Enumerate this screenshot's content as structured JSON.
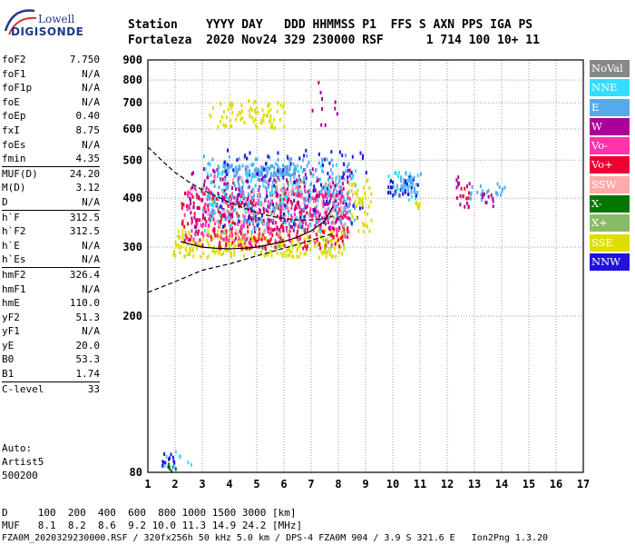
{
  "logo": {
    "line1": "Lowell",
    "line2": "DIGISONDE"
  },
  "header": {
    "line1": "Station    YYYY DAY   DDD HHMMSS P1  FFS S AXN PPS IGA PS",
    "line2": "Fortaleza  2020 Nov24 329 230000 RSF      1 714 100 10+ 11"
  },
  "params": [
    {
      "name": "foF2",
      "value": "7.750"
    },
    {
      "name": "foF1",
      "value": "N/A"
    },
    {
      "name": "foF1p",
      "value": "N/A"
    },
    {
      "name": "foE",
      "value": "N/A"
    },
    {
      "name": "foEp",
      "value": "0.40"
    },
    {
      "name": "fxI",
      "value": "8.75"
    },
    {
      "name": "foEs",
      "value": "N/A"
    },
    {
      "name": "fmin",
      "value": "4.35"
    },
    {
      "name": "MUF(D)",
      "value": "24.20",
      "sep": true
    },
    {
      "name": "M(D)",
      "value": "3.12"
    },
    {
      "name": "D",
      "value": "N/A"
    },
    {
      "name": "h`F",
      "value": "312.5",
      "sep": true
    },
    {
      "name": "h`F2",
      "value": "312.5"
    },
    {
      "name": "h`E",
      "value": "N/A"
    },
    {
      "name": "h`Es",
      "value": "N/A"
    },
    {
      "name": "hmF2",
      "value": "326.4",
      "sep": true
    },
    {
      "name": "hmF1",
      "value": "N/A"
    },
    {
      "name": "hmE",
      "value": "110.0"
    },
    {
      "name": "yF2",
      "value": "51.3"
    },
    {
      "name": "yF1",
      "value": "N/A"
    },
    {
      "name": "yE",
      "value": "20.0"
    },
    {
      "name": "B0",
      "value": "53.3"
    },
    {
      "name": "B1",
      "value": "1.74"
    },
    {
      "name": "C-level",
      "value": "33",
      "sep": true
    }
  ],
  "auto": {
    "line1": "Auto:",
    "line2": "Artist5",
    "line3": "500200"
  },
  "legend": [
    {
      "label": "NoVal",
      "color": "#888888"
    },
    {
      "label": "NNE",
      "color": "#33ddff"
    },
    {
      "label": "E",
      "color": "#55aaee"
    },
    {
      "label": "W",
      "color": "#aa0099"
    },
    {
      "label": "Vo-",
      "color": "#ff33aa"
    },
    {
      "label": "Vo+",
      "color": "#ee0033"
    },
    {
      "label": "SSW",
      "color": "#ffaaaa"
    },
    {
      "label": "X-",
      "color": "#007700"
    },
    {
      "label": "X+",
      "color": "#88bb66"
    },
    {
      "label": "SSE",
      "color": "#dddd00"
    },
    {
      "label": "NNW",
      "color": "#2211dd"
    }
  ],
  "footer": {
    "d_row": "D     100  200  400  600  800 1000 1500 3000 [km]",
    "muf_row": "MUF   8.1  8.2  8.6  9.2 10.0 11.3 14.9 24.2 [MHz]",
    "file_row": "FZA0M_2020329230000.RSF / 320fx256h 50 kHz 5.0 km / DPS-4 FZA0M 904 / 3.9 S 321.6 E   Ion2Png 1.3.20"
  },
  "chart_data": {
    "type": "scatter",
    "x_ticks": [
      1,
      2,
      3,
      4,
      5,
      6,
      7,
      8,
      9,
      10,
      11,
      12,
      13,
      14,
      15,
      16,
      17
    ],
    "y_ticks": [
      80,
      200,
      300,
      400,
      500,
      600,
      700,
      800,
      900
    ],
    "xlim": [
      1,
      17
    ],
    "ylim": [
      80,
      900
    ],
    "y_scale": "log",
    "grid": true,
    "clusters": [
      {
        "direction": "SSE",
        "x": [
          1.9,
          8.2
        ],
        "y": [
          285,
          335
        ],
        "count": 260
      },
      {
        "direction": "Vo+",
        "x": [
          2.2,
          8.4
        ],
        "y": [
          300,
          420
        ],
        "count": 300
      },
      {
        "direction": "Vo-",
        "x": [
          2.3,
          8.4
        ],
        "y": [
          310,
          430
        ],
        "count": 260
      },
      {
        "direction": "W",
        "x": [
          2.5,
          8.5
        ],
        "y": [
          330,
          480
        ],
        "count": 240
      },
      {
        "direction": "E",
        "x": [
          3.0,
          8.6
        ],
        "y": [
          340,
          520
        ],
        "count": 260
      },
      {
        "direction": "E",
        "x": [
          3.5,
          6.4
        ],
        "y": [
          460,
          490
        ],
        "count": 90
      },
      {
        "direction": "NNE",
        "x": [
          3.0,
          8.6
        ],
        "y": [
          330,
          500
        ],
        "count": 120
      },
      {
        "direction": "NNW",
        "x": [
          3.5,
          9.0
        ],
        "y": [
          340,
          540
        ],
        "count": 90
      },
      {
        "direction": "SSW",
        "x": [
          3.0,
          8.5
        ],
        "y": [
          320,
          460
        ],
        "count": 80
      },
      {
        "direction": "X+",
        "x": [
          3.0,
          8.5
        ],
        "y": [
          300,
          450
        ],
        "count": 30
      },
      {
        "direction": "SSE",
        "x": [
          3.2,
          6.0
        ],
        "y": [
          610,
          715
        ],
        "count": 80
      },
      {
        "direction": "SSE",
        "x": [
          8.3,
          9.2
        ],
        "y": [
          330,
          450
        ],
        "count": 40
      },
      {
        "direction": "SSE",
        "x": [
          10.8,
          11.0
        ],
        "y": [
          380,
          395
        ],
        "count": 8
      },
      {
        "direction": "NNE",
        "x": [
          9.8,
          10.9
        ],
        "y": [
          400,
          470
        ],
        "count": 35
      },
      {
        "direction": "NNW",
        "x": [
          9.8,
          10.9
        ],
        "y": [
          410,
          460
        ],
        "count": 25
      },
      {
        "direction": "E",
        "x": [
          10.0,
          11.0
        ],
        "y": [
          410,
          470
        ],
        "count": 30
      },
      {
        "direction": "W",
        "x": [
          7.0,
          8.0
        ],
        "y": [
          600,
          800
        ],
        "count": 10
      },
      {
        "direction": "W",
        "x": [
          12.3,
          12.9
        ],
        "y": [
          380,
          460
        ],
        "count": 14
      },
      {
        "direction": "Vo+",
        "x": [
          12.3,
          12.9
        ],
        "y": [
          400,
          440
        ],
        "count": 8
      },
      {
        "direction": "E",
        "x": [
          12.6,
          14.2
        ],
        "y": [
          400,
          440
        ],
        "count": 22
      },
      {
        "direction": "W",
        "x": [
          13.2,
          13.7
        ],
        "y": [
          385,
          420
        ],
        "count": 10
      },
      {
        "direction": "NNW",
        "x": [
          1.5,
          2.0
        ],
        "y": [
          82,
          90
        ],
        "count": 14
      },
      {
        "direction": "X-",
        "x": [
          1.7,
          2.0
        ],
        "y": [
          81,
          85
        ],
        "count": 6
      },
      {
        "direction": "NNE",
        "x": [
          1.5,
          2.7
        ],
        "y": [
          83,
          92
        ],
        "count": 8
      }
    ],
    "profile_curve": {
      "x": [
        2.2,
        3.0,
        3.5,
        4.0,
        4.5,
        5.0,
        5.5,
        6.0,
        6.5,
        7.0,
        7.5,
        7.8
      ],
      "y": [
        310,
        300,
        298,
        297,
        298,
        300,
        305,
        310,
        318,
        330,
        350,
        380
      ]
    },
    "lower_dashed": {
      "x": [
        1.0,
        2.0,
        3.0,
        4.0,
        5.0,
        6.0,
        7.0,
        7.8
      ],
      "y": [
        230,
        245,
        262,
        272,
        285,
        298,
        312,
        325
      ]
    },
    "upper_dashed": {
      "x": [
        1.0,
        1.5,
        2.0,
        2.5,
        3.0,
        3.5,
        4.0,
        4.5,
        5.0,
        5.5,
        6.0,
        6.5,
        7.0,
        7.5,
        7.8
      ],
      "y": [
        540,
        500,
        465,
        440,
        420,
        405,
        390,
        378,
        368,
        360,
        355,
        352,
        352,
        355,
        360
      ]
    }
  }
}
